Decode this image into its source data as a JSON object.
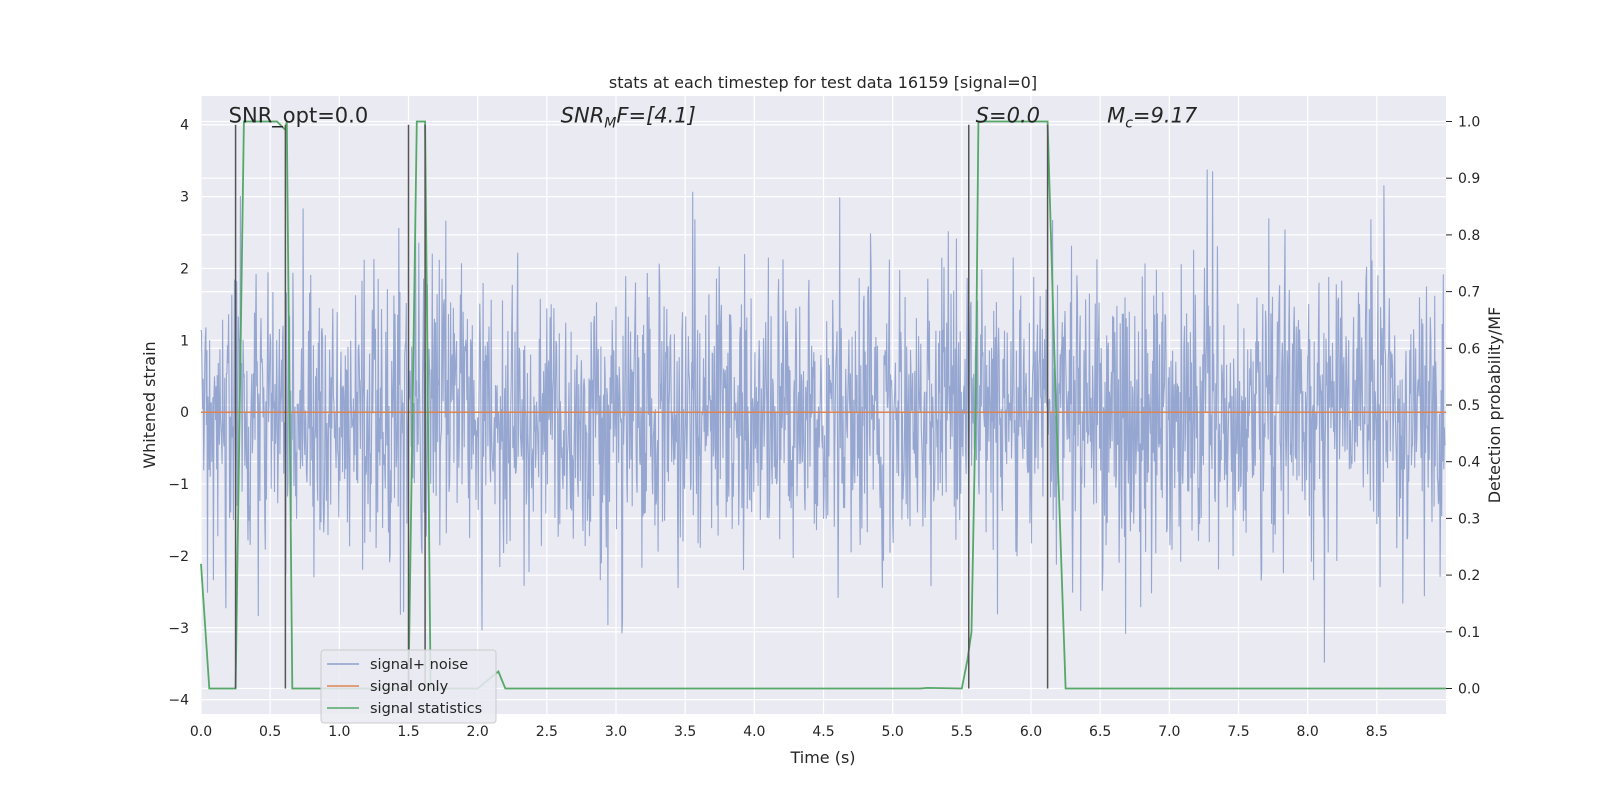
{
  "chart_data": {
    "type": "line",
    "title": "stats at each timestep for test data 16159 [signal=0]",
    "xlabel": "Time (s)",
    "ylabel": "Whitened strain",
    "y2label": "Detection probability/MF",
    "xlim": [
      0.0,
      9.0
    ],
    "ylim": [
      -4.2,
      4.4
    ],
    "y2lim": [
      -0.045,
      1.045
    ],
    "xticks": [
      "0.0",
      "0.5",
      "1.0",
      "1.5",
      "2.0",
      "2.5",
      "3.0",
      "3.5",
      "4.0",
      "4.5",
      "5.0",
      "5.5",
      "6.0",
      "6.5",
      "7.0",
      "7.5",
      "8.0",
      "8.5"
    ],
    "xtick_values": [
      0.0,
      0.5,
      1.0,
      1.5,
      2.0,
      2.5,
      3.0,
      3.5,
      4.0,
      4.5,
      5.0,
      5.5,
      6.0,
      6.5,
      7.0,
      7.5,
      8.0,
      8.5
    ],
    "yticks": [
      "−4",
      "−3",
      "−2",
      "−1",
      "0",
      "1",
      "2",
      "3",
      "4"
    ],
    "ytick_values": [
      -4,
      -3,
      -2,
      -1,
      0,
      1,
      2,
      3,
      4
    ],
    "y2ticks": [
      "0.0",
      "0.1",
      "0.2",
      "0.3",
      "0.4",
      "0.5",
      "0.6",
      "0.7",
      "0.8",
      "0.9",
      "1.0"
    ],
    "y2tick_values": [
      0.0,
      0.1,
      0.2,
      0.3,
      0.4,
      0.5,
      0.6,
      0.7,
      0.8,
      0.9,
      1.0
    ],
    "noise": {
      "sample_rate": 256,
      "sigma": 1.0,
      "seed": 16159
    },
    "series": [
      {
        "name": "signal+ noise",
        "color": "#8c9fcc",
        "axis": "left",
        "kind": "whitened-noise"
      },
      {
        "name": "signal only",
        "color": "#dd8452",
        "axis": "left",
        "x": [
          0.0,
          9.0
        ],
        "y": [
          0.0,
          0.0
        ]
      },
      {
        "name": "signal statistics",
        "color": "#55a868",
        "axis": "right",
        "x": [
          0.0,
          0.06,
          0.1,
          0.25,
          0.31,
          0.5,
          0.55,
          0.61,
          0.62,
          0.66,
          0.72,
          1.2,
          1.5,
          1.56,
          1.62,
          1.66,
          1.72,
          1.9,
          2.0,
          2.1,
          2.15,
          2.2,
          5.15,
          5.2,
          5.25,
          5.5,
          5.54,
          5.57,
          5.6,
          5.62,
          5.66,
          6.1,
          6.12,
          6.18,
          6.25,
          6.3,
          9.0
        ],
        "y": [
          0.22,
          0.0,
          0.0,
          0.0,
          1.0,
          1.0,
          1.0,
          0.985,
          1.0,
          0.0,
          0.0,
          0.0,
          0.0,
          1.0,
          1.0,
          0.0,
          0.0,
          0.0,
          0.0,
          0.02,
          0.03,
          0.0,
          0.0,
          0.0,
          0.001,
          0.0,
          0.05,
          0.1,
          0.5,
          1.0,
          1.0,
          1.0,
          1.0,
          0.5,
          0.0,
          0.0,
          0.0
        ]
      }
    ],
    "vlines": [
      0.25,
      0.61,
      1.5,
      1.62,
      5.55,
      6.12
    ],
    "vline_color": "#555555",
    "annotations": [
      {
        "text": "SNR_opt=0.0",
        "x": 0.2,
        "y": 4.0,
        "italic": false
      },
      {
        "text": "SNR",
        "sub": "M",
        "tail": "F=[4.1]",
        "x": 2.6,
        "y": 4.0,
        "italic": true
      },
      {
        "text": "S=0.0",
        "x": 5.6,
        "y": 4.0,
        "italic": true
      },
      {
        "text": "M",
        "sub": "c",
        "tail": "=9.17",
        "x": 6.55,
        "y": 4.0,
        "italic": true
      }
    ],
    "legend": {
      "placement": "lower-left",
      "entries": [
        "signal+ noise",
        "signal only",
        "signal statistics"
      ]
    },
    "grid": true,
    "background": "#eaeaf2"
  }
}
